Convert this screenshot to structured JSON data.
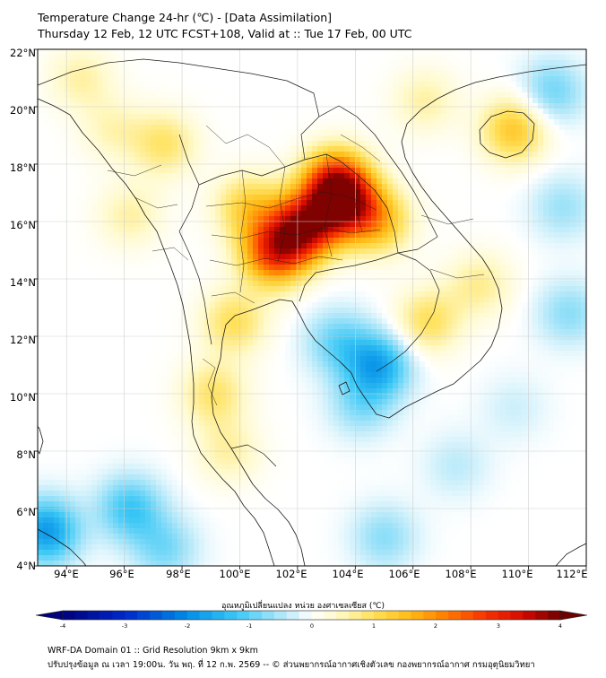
{
  "header": {
    "title_line1": "Temperature Change 24-hr (℃) - [Data Assimilation]",
    "title_line2": "Thursday 12 Feb, 12 UTC FCST+108, Valid at :: Tue 17 Feb, 00 UTC"
  },
  "map": {
    "lat_ticks": [
      "22°N",
      "20°N",
      "18°N",
      "16°N",
      "14°N",
      "12°N",
      "10°N",
      "8°N",
      "6°N",
      "4°N"
    ],
    "lon_ticks": [
      "94°E",
      "96°E",
      "98°E",
      "100°E",
      "102°E",
      "104°E",
      "106°E",
      "108°E",
      "110°E",
      "112°E"
    ],
    "lat_range": [
      4,
      22
    ],
    "lon_range": [
      93,
      112
    ],
    "field_hotspots": [
      {
        "lon": 102.2,
        "lat": 15.8,
        "value": 3.2
      },
      {
        "lon": 103.6,
        "lat": 16.6,
        "value": 2.9
      },
      {
        "lon": 101.2,
        "lat": 14.9,
        "value": 2.6
      },
      {
        "lon": 103.3,
        "lat": 17.4,
        "value": 2.5
      },
      {
        "lon": 104.8,
        "lat": 16.0,
        "value": 1.4
      },
      {
        "lon": 100.3,
        "lat": 16.5,
        "value": 1.2
      },
      {
        "lon": 99.8,
        "lat": 12.5,
        "value": 1.0
      },
      {
        "lon": 99.1,
        "lat": 10.0,
        "value": 0.9
      },
      {
        "lon": 99.6,
        "lat": 8.0,
        "value": 0.6
      },
      {
        "lon": 97.4,
        "lat": 18.7,
        "value": 0.9
      },
      {
        "lon": 96.2,
        "lat": 16.2,
        "value": 0.6
      },
      {
        "lon": 95.6,
        "lat": 19.2,
        "value": 0.5
      },
      {
        "lon": 94.5,
        "lat": 21.0,
        "value": 0.6
      },
      {
        "lon": 109.5,
        "lat": 19.2,
        "value": 1.4
      },
      {
        "lon": 106.4,
        "lat": 20.2,
        "value": 0.6
      },
      {
        "lon": 106.5,
        "lat": 12.5,
        "value": 1.0
      },
      {
        "lon": 108.3,
        "lat": 13.8,
        "value": 0.7
      },
      {
        "lon": 104.8,
        "lat": 11.0,
        "value": -1.6
      },
      {
        "lon": 103.4,
        "lat": 11.8,
        "value": -0.9
      },
      {
        "lon": 104.2,
        "lat": 9.6,
        "value": -0.7
      },
      {
        "lon": 96.2,
        "lat": 6.0,
        "value": -1.2
      },
      {
        "lon": 93.3,
        "lat": 5.2,
        "value": -1.8
      },
      {
        "lon": 97.4,
        "lat": 4.6,
        "value": -0.8
      },
      {
        "lon": 110.8,
        "lat": 20.5,
        "value": -0.9
      },
      {
        "lon": 111.2,
        "lat": 16.5,
        "value": -0.6
      },
      {
        "lon": 111.4,
        "lat": 12.8,
        "value": -0.7
      },
      {
        "lon": 105.0,
        "lat": 5.0,
        "value": -0.7
      },
      {
        "lon": 107.5,
        "lat": 7.5,
        "value": -0.4
      },
      {
        "lon": 109.5,
        "lat": 9.5,
        "value": -0.3
      }
    ]
  },
  "colorbar": {
    "label": "อุณหภูมิเปลี่ยนแปลง หน่วย องศาเซลเซียส (℃)",
    "ticks": [
      "-4",
      "-3",
      "-2",
      "-1",
      "0",
      "1",
      "2",
      "3",
      "4"
    ],
    "range": [
      -4,
      4
    ]
  },
  "footer": {
    "line1": "WRF-DA Domain 01 :: Grid Resolution 9km x 9km",
    "line2": "ปรับปรุงข้อมูล ณ เวลา 19:00น. วัน พฤ. ที่ 12 ก.พ. 2569 -- © ส่วนพยากรณ์อากาศเชิงตัวเลข กองพยากรณ์อากาศ กรมอุตุนิยมวิทยา"
  },
  "colors": {
    "frame": "#000000",
    "coast": "#1a1a1a",
    "grid": "#d0d0d0"
  }
}
